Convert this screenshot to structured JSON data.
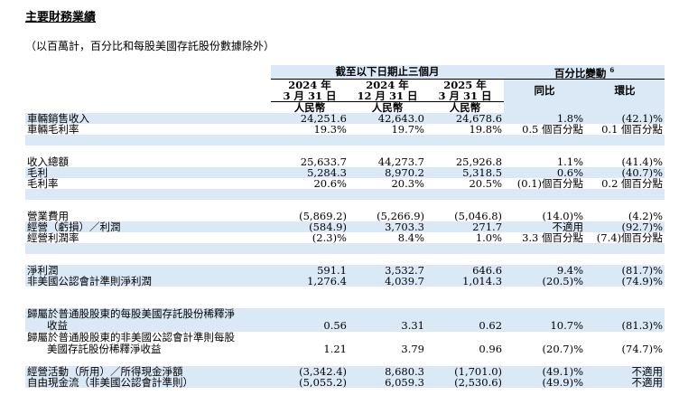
{
  "title": "主要財務業績",
  "subtitle": "（以百萬計，百分比和每股美國存託股份數據除外）",
  "header": {
    "period_group": "截至以下日期止三個月",
    "change_group": "百分比變動",
    "change_footnote": "6",
    "periods": [
      {
        "year": "2024 年",
        "date": "3 月 31 日",
        "currency": "人民幣"
      },
      {
        "year": "2024 年",
        "date": "12 月 31 日",
        "currency": "人民幣"
      },
      {
        "year": "2025 年",
        "date": "3 月 31 日",
        "currency": "人民幣"
      }
    ],
    "yoy": "同比",
    "qoq": "環比"
  },
  "rows": [
    {
      "label": "車輛銷售收入",
      "v1": "24,251.6",
      "v2": "42,643.0",
      "v3": "24,678.6",
      "yoy": "1.8%",
      "qoq": "(42.1)%"
    },
    {
      "label": "車輛毛利率",
      "v1": "19.3%",
      "v2": "19.7%",
      "v3": "19.8%",
      "yoy": "0.5 個百分點",
      "qoq": "0.1 個百分點"
    },
    {
      "label": "收入總額",
      "v1": "25,633.7",
      "v2": "44,273.7",
      "v3": "25,926.8",
      "yoy": "1.1%",
      "qoq": "(41.4)%"
    },
    {
      "label": "毛利",
      "v1": "5,284.3",
      "v2": "8,970.2",
      "v3": "5,318.5",
      "yoy": "0.6%",
      "qoq": "(40.7)%"
    },
    {
      "label": "毛利率",
      "v1": "20.6%",
      "v2": "20.3%",
      "v3": "20.5%",
      "yoy": "(0.1)個百分點",
      "qoq": "0.2 個百分點"
    },
    {
      "label": "營業費用",
      "v1": "(5,869.2)",
      "v2": "(5,266.9)",
      "v3": "(5,046.8)",
      "yoy": "(14.0)%",
      "qoq": "(4.2)%"
    },
    {
      "label": "經營（虧損）／利潤",
      "v1": "(584.9)",
      "v2": "3,703.3",
      "v3": "271.7",
      "yoy": "不適用",
      "qoq": "(92.7)%"
    },
    {
      "label": "經營利潤率",
      "v1": "(2.3)%",
      "v2": "8.4%",
      "v3": "1.0%",
      "yoy": "3.3 個百分點",
      "qoq": "(7.4)個百分點"
    },
    {
      "label": "淨利潤",
      "v1": "591.1",
      "v2": "3,532.7",
      "v3": "646.6",
      "yoy": "9.4%",
      "qoq": "(81.7)%"
    },
    {
      "label": "非美國公認會計準則淨利潤",
      "v1": "1,276.4",
      "v2": "4,039.7",
      "v3": "1,014.3",
      "yoy": "(20.5)%",
      "qoq": "(74.9)%"
    },
    {
      "label1": "歸屬於普通股股東的每股美國存託股份稀釋淨",
      "label2": "收益",
      "v1": "0.56",
      "v2": "3.31",
      "v3": "0.62",
      "yoy": "10.7%",
      "qoq": "(81.3)%"
    },
    {
      "label1": "歸屬於普通股股東的非美國公認會計準則每股",
      "label2": "美國存託股份稀釋淨收益",
      "v1": "1.21",
      "v2": "3.79",
      "v3": "0.96",
      "yoy": "(20.7)%",
      "qoq": "(74.7)%"
    },
    {
      "label": "經營活動（所用）／所得現金淨額",
      "v1": "(3,342.4)",
      "v2": "8,680.3",
      "v3": "(1,701.0)",
      "yoy": "(49.1)%",
      "qoq": "不適用"
    },
    {
      "label": "自由現金流（非美國公認會計準則）",
      "v1": "(5,055.2)",
      "v2": "6,059.3",
      "v3": "(2,530.6)",
      "yoy": "(49.9)%",
      "qoq": "不適用"
    }
  ]
}
